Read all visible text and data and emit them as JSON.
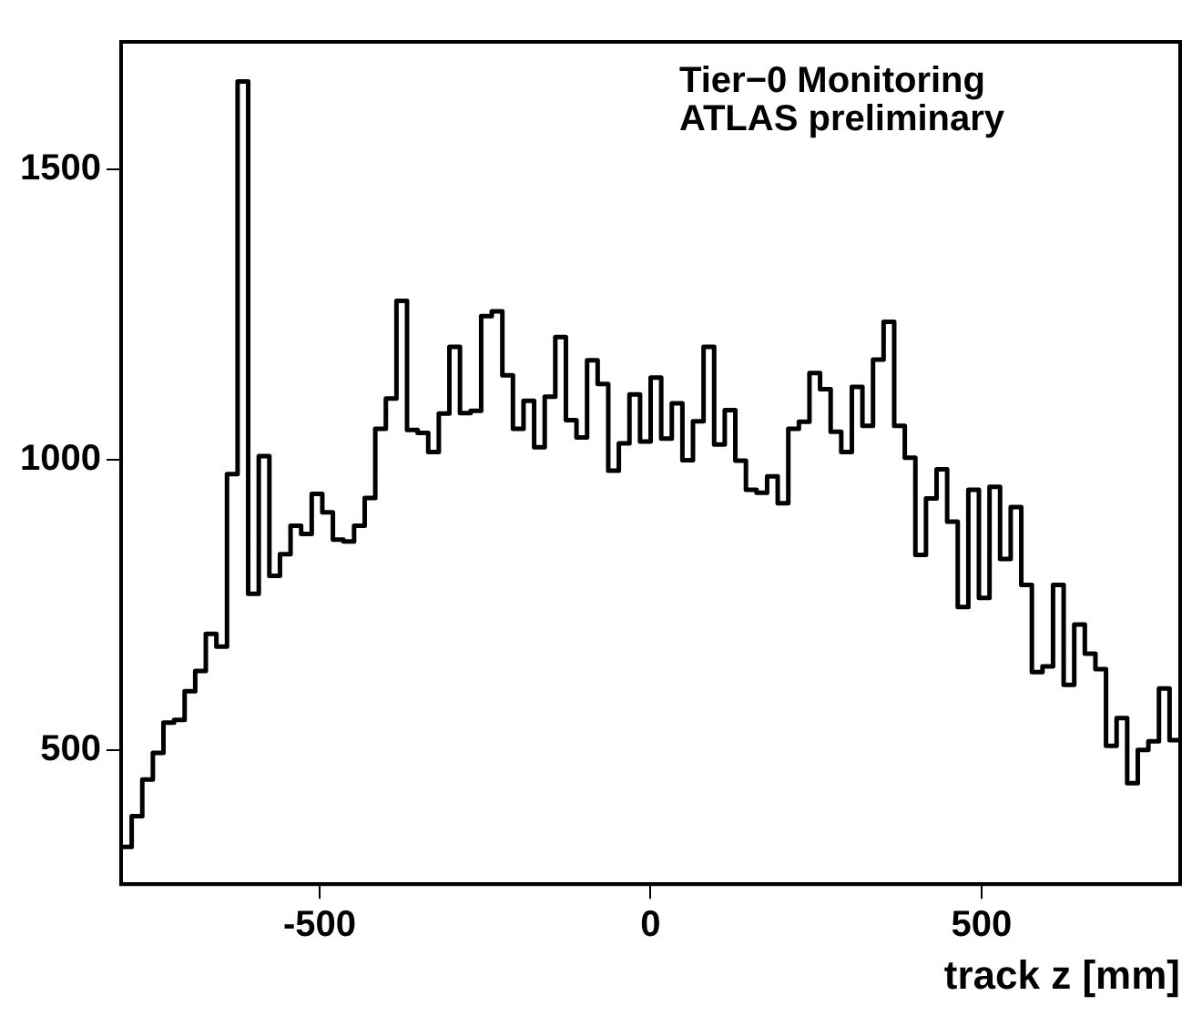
{
  "chart_data": {
    "type": "histogram",
    "xlabel": "track z [mm]",
    "annotations": [
      "Tier−0 Monitoring",
      "ATLAS preliminary"
    ],
    "bins": [
      -800,
      -784,
      -768,
      -752,
      -736,
      -720,
      -704,
      -688,
      -672,
      -656,
      -640,
      -624,
      -608,
      -592,
      -576,
      -560,
      -544,
      -528,
      -512,
      -496,
      -480,
      -464,
      -448,
      -432,
      -416,
      -400,
      -384,
      -368,
      -352,
      -336,
      -320,
      -304,
      -288,
      -272,
      -256,
      -240,
      -224,
      -208,
      -192,
      -176,
      -160,
      -144,
      -128,
      -112,
      -96,
      -80,
      -64,
      -48,
      -32,
      -16,
      0,
      16,
      32,
      48,
      64,
      80,
      96,
      112,
      128,
      144,
      160,
      176,
      192,
      208,
      224,
      240,
      256,
      272,
      288,
      304,
      320,
      336,
      352,
      368,
      384,
      400,
      416,
      432,
      448,
      464,
      480,
      496,
      512,
      528,
      544,
      560,
      576,
      592,
      608,
      624,
      640,
      656,
      672,
      688,
      704,
      720,
      736,
      752,
      768,
      784,
      800
    ],
    "values": [
      334,
      387,
      450,
      496,
      548,
      553,
      602,
      637,
      701,
      679,
      976,
      1652,
      770,
      1007,
      801,
      838,
      887,
      873,
      942,
      910,
      863,
      860,
      887,
      935,
      1054,
      1106,
      1274,
      1052,
      1047,
      1014,
      1080,
      1195,
      1081,
      1085,
      1248,
      1256,
      1146,
      1054,
      1102,
      1022,
      1109,
      1212,
      1069,
      1039,
      1172,
      1131,
      982,
      1029,
      1113,
      1032,
      1142,
      1037,
      1098,
      1000,
      1067,
      1195,
      1027,
      1086,
      999,
      949,
      944,
      972,
      926,
      1054,
      1066,
      1150,
      1122,
      1049,
      1014,
      1126,
      1059,
      1173,
      1238,
      1059,
      1004,
      837,
      934,
      984,
      894,
      747,
      949,
      763,
      954,
      830,
      919,
      785,
      635,
      645,
      785,
      613,
      717,
      667,
      640,
      508,
      556,
      444,
      501,
      516,
      607,
      518
    ],
    "color": "#000000",
    "xlim": [
      -800,
      800
    ],
    "ylim": [
      270,
      1720
    ],
    "xticks": [
      -500,
      0,
      500
    ],
    "yticks": [
      500,
      1000,
      1500
    ]
  }
}
